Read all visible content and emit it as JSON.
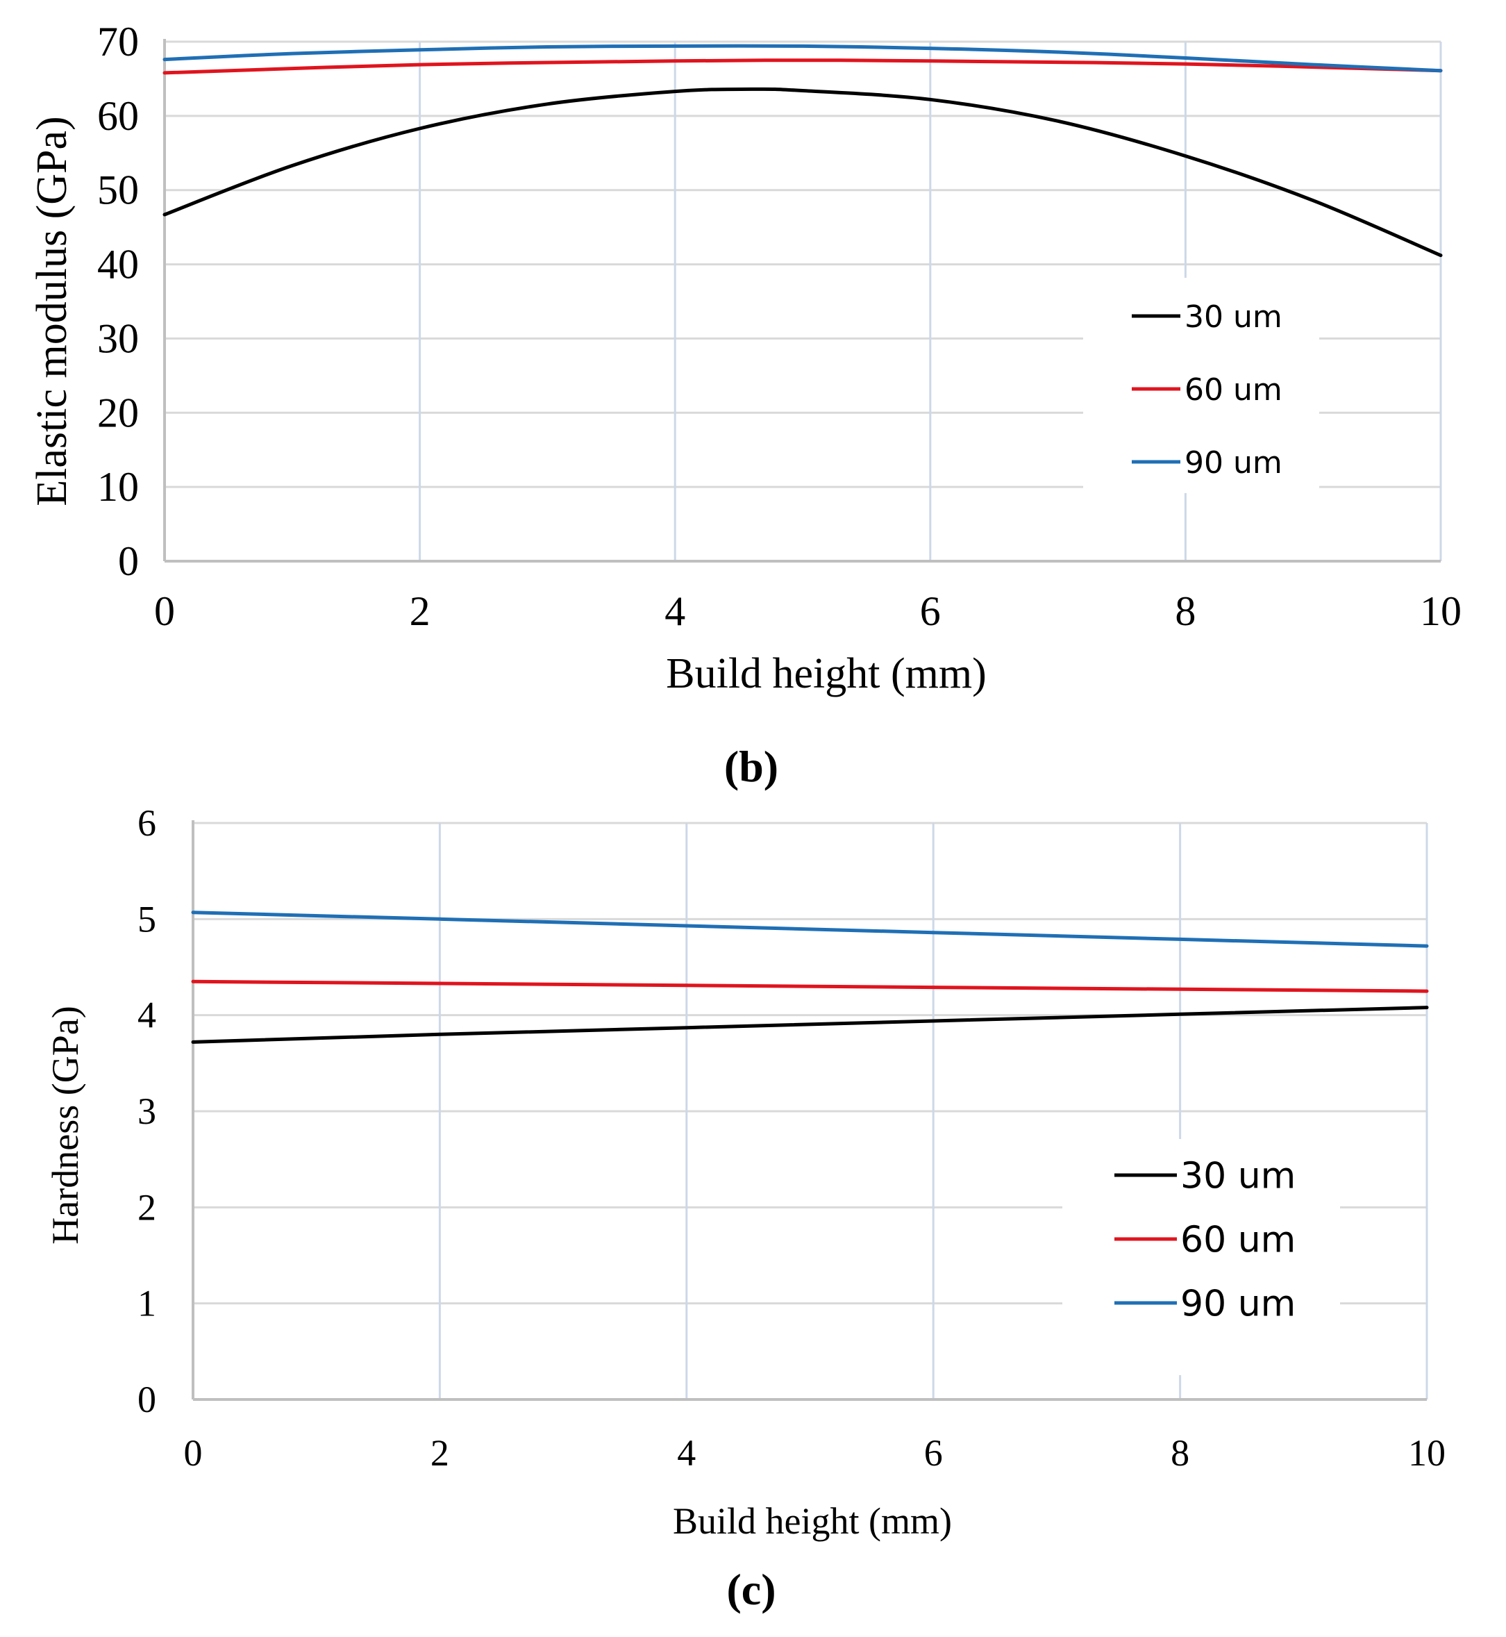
{
  "chart_data": [
    {
      "panel": "b",
      "type": "line",
      "title": "",
      "caption": "(b)",
      "xlabel": "Build height (mm)",
      "ylabel": "Elastic modulus (GPa)",
      "xlim": [
        0,
        10
      ],
      "ylim": [
        0,
        70
      ],
      "x_ticks": [
        0,
        2,
        4,
        6,
        8,
        10
      ],
      "y_ticks": [
        0,
        10,
        20,
        30,
        40,
        50,
        60,
        70
      ],
      "grid": true,
      "legend_position": "right",
      "series": [
        {
          "name": "30 um",
          "color": "#000000",
          "x": [
            0,
            1,
            2,
            3,
            4,
            4.6,
            5,
            6,
            7,
            8,
            9,
            10
          ],
          "y": [
            46.7,
            53.3,
            58.3,
            61.6,
            63.3,
            63.6,
            63.4,
            62.2,
            59.3,
            54.6,
            48.6,
            41.2
          ]
        },
        {
          "name": "60 um",
          "color": "#e0141e",
          "x": [
            0,
            2,
            4,
            5,
            6,
            8,
            10
          ],
          "y": [
            65.8,
            66.9,
            67.4,
            67.5,
            67.4,
            67.0,
            66.1
          ]
        },
        {
          "name": "90 um",
          "color": "#1f6fb5",
          "x": [
            0,
            1,
            2,
            3,
            4,
            5,
            6,
            7,
            8,
            9,
            10
          ],
          "y": [
            67.6,
            68.4,
            68.9,
            69.3,
            69.4,
            69.4,
            69.1,
            68.6,
            67.8,
            66.9,
            66.1
          ]
        }
      ]
    },
    {
      "panel": "c",
      "type": "line",
      "title": "",
      "caption": "(c)",
      "xlabel": "Build height  (mm)",
      "ylabel": "Hardness  (GPa)",
      "xlim": [
        0,
        10
      ],
      "ylim": [
        0,
        6
      ],
      "x_ticks": [
        0,
        2,
        4,
        6,
        8,
        10
      ],
      "y_ticks": [
        0,
        1,
        2,
        3,
        4,
        5,
        6
      ],
      "grid": true,
      "legend_position": "right",
      "series": [
        {
          "name": "30 um",
          "color": "#000000",
          "x": [
            0,
            2,
            4,
            6,
            8,
            10
          ],
          "y": [
            3.72,
            3.8,
            3.87,
            3.94,
            4.01,
            4.08
          ]
        },
        {
          "name": "60 um",
          "color": "#e0141e",
          "x": [
            0,
            2,
            4,
            6,
            8,
            10
          ],
          "y": [
            4.35,
            4.33,
            4.31,
            4.29,
            4.27,
            4.25
          ]
        },
        {
          "name": "90 um",
          "color": "#1f6fb5",
          "x": [
            0,
            2,
            4,
            6,
            8,
            10
          ],
          "y": [
            5.07,
            5.0,
            4.93,
            4.86,
            4.79,
            4.72
          ]
        }
      ]
    }
  ]
}
